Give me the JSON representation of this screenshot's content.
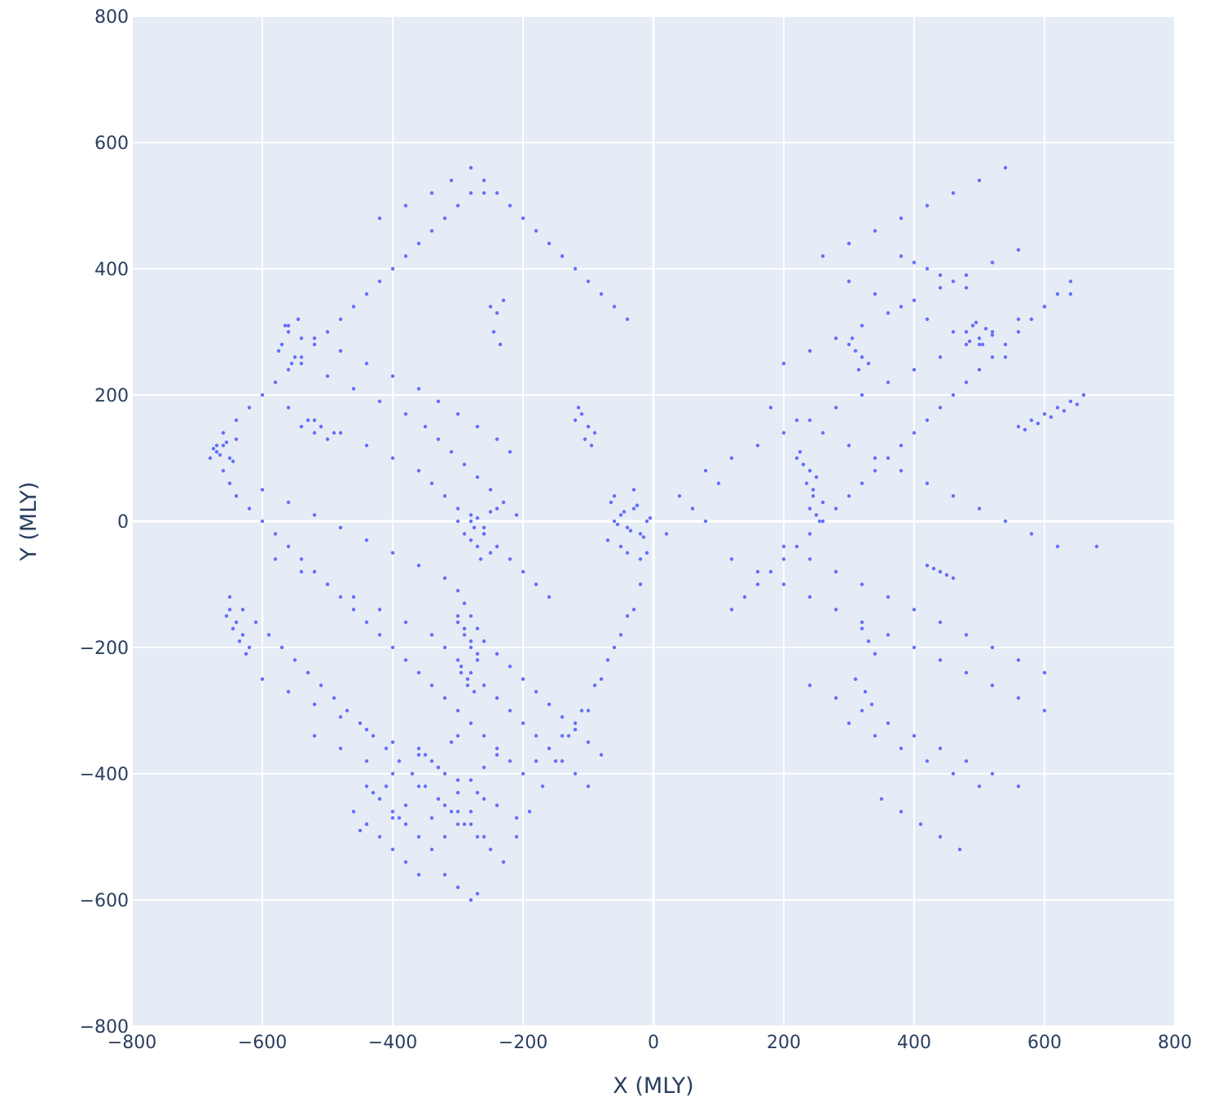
{
  "chart_data": {
    "type": "scatter",
    "title": "",
    "xlabel": "X (MLY)",
    "ylabel": "Y (MLY)",
    "xlim": [
      -800,
      800
    ],
    "ylim": [
      -800,
      800
    ],
    "grid": true,
    "colors": {
      "plot_bg": "#e5ecf6",
      "grid": "#ffffff",
      "marker": "#636efa",
      "text": "#2a3f5f"
    },
    "x_ticks": [
      {
        "value": -800,
        "label": "−800"
      },
      {
        "value": -600,
        "label": "−600"
      },
      {
        "value": -400,
        "label": "−400"
      },
      {
        "value": -200,
        "label": "−200"
      },
      {
        "value": 0,
        "label": "0"
      },
      {
        "value": 200,
        "label": "200"
      },
      {
        "value": 400,
        "label": "400"
      },
      {
        "value": 600,
        "label": "600"
      },
      {
        "value": 800,
        "label": "800"
      }
    ],
    "y_ticks": [
      {
        "value": -800,
        "label": "−800"
      },
      {
        "value": -600,
        "label": "−600"
      },
      {
        "value": -400,
        "label": "−400"
      },
      {
        "value": -200,
        "label": "−200"
      },
      {
        "value": 0,
        "label": "0"
      },
      {
        "value": 200,
        "label": "200"
      },
      {
        "value": 400,
        "label": "400"
      },
      {
        "value": 600,
        "label": "600"
      },
      {
        "value": 800,
        "label": "800"
      }
    ],
    "series": [
      {
        "x": [
          -680,
          -670,
          -660,
          -650,
          -640,
          -620,
          -600,
          -580,
          -560,
          -540,
          -520,
          -500,
          -480,
          -460,
          -440,
          -420,
          -400,
          -380,
          -360,
          -340,
          -320,
          -300,
          -280,
          -260,
          -240,
          -220,
          -200,
          -180,
          -160,
          -140,
          -120,
          -100,
          -80,
          -60,
          -40,
          -20,
          -10,
          -660,
          -640,
          -620,
          -600,
          -580,
          -560,
          -540,
          -520,
          -500,
          -480,
          -460,
          -440,
          -420,
          -400,
          -380,
          -360,
          -340,
          -320,
          -300,
          -280,
          -260,
          -240,
          -220,
          -200,
          -180,
          -160,
          -140,
          -120,
          -100,
          -80,
          -60,
          -40,
          -650,
          -630,
          -610,
          -590,
          -570,
          -550,
          -530,
          -510,
          -490,
          -470,
          -450,
          -430,
          -410,
          -390,
          -370,
          -350,
          -330,
          -310,
          -290,
          -270,
          -250,
          -230,
          -210,
          -190,
          -170,
          -150,
          -130,
          -110,
          -90,
          -70,
          -50,
          -30,
          -600,
          -560,
          -520,
          -480,
          -440,
          -400,
          -360,
          -320,
          -300,
          -290,
          -280,
          -270,
          -260,
          -240,
          -220,
          -200,
          -180,
          -160,
          -140,
          -120,
          -100,
          -80,
          -580,
          -540,
          -500,
          -460,
          -420,
          -380,
          -340,
          -320,
          -300,
          -280,
          -260,
          -240,
          -220,
          -200,
          -180,
          -160,
          -140,
          -120,
          -100,
          -560,
          -520,
          -480,
          -440,
          -400,
          -360,
          -340,
          -320,
          -300,
          -280,
          -260,
          -240,
          -220,
          -200,
          -180,
          -160,
          -540,
          -500,
          -460,
          -420,
          -380,
          -350,
          -330,
          -310,
          -290,
          -270,
          -250,
          -230,
          -210,
          -600,
          -560,
          -520,
          -480,
          -440,
          -400,
          -360,
          -330,
          -300,
          -270,
          -240,
          -210,
          -440,
          -420,
          -400,
          -380,
          -360,
          -340,
          -320,
          -300,
          -280,
          -260,
          -240,
          -440,
          -420,
          -400,
          -380,
          -360,
          -340,
          -320,
          -300,
          -280,
          -260,
          -560,
          -520,
          -480,
          -440,
          -400,
          -360,
          -330,
          -300,
          -270,
          -240,
          -220,
          -520,
          -480,
          -440,
          -400,
          -360,
          -330,
          -300,
          -280,
          -260,
          -420,
          -380,
          -340,
          -310,
          -280,
          -260,
          -320,
          -300,
          -280,
          -270,
          -650,
          -640,
          -630,
          -620,
          -655,
          -645,
          -635,
          -625,
          -670,
          -660,
          -650,
          -640,
          -675,
          -665,
          -655,
          -645,
          -570,
          -560,
          -550,
          -540,
          -575,
          -565,
          -555,
          -545,
          -540,
          -520,
          -500,
          -530,
          -510,
          -490,
          -60,
          -50,
          -40,
          -30,
          -20,
          -10,
          -5,
          -55,
          -45,
          -35,
          -25,
          -15,
          -65,
          -70,
          -60,
          -50,
          -40,
          -30,
          -20,
          -300,
          -290,
          -280,
          -270,
          -295,
          -285,
          -275,
          -300,
          -290,
          -280,
          -270,
          -295,
          -285,
          -120,
          -110,
          -100,
          -90,
          -115,
          -105,
          -95,
          -280,
          -270,
          -260,
          -250,
          -275,
          -265,
          -250,
          -240,
          -230,
          -245,
          -235,
          -360,
          -340,
          -320,
          -300,
          -350,
          -330,
          -310,
          -300,
          -280,
          -260,
          -240,
          -290,
          -270,
          -250,
          -460,
          -440,
          -420,
          -400,
          -380,
          -450,
          -430,
          -410,
          -390
        ],
        "y": [
          100,
          120,
          80,
          60,
          40,
          20,
          0,
          -20,
          -40,
          -60,
          -80,
          -100,
          -120,
          -140,
          -160,
          -180,
          -200,
          -220,
          -240,
          -260,
          -280,
          -300,
          -320,
          -340,
          -360,
          -380,
          -400,
          -380,
          -360,
          -340,
          -320,
          -300,
          -250,
          -200,
          -150,
          -100,
          -50,
          140,
          160,
          180,
          200,
          220,
          240,
          260,
          280,
          300,
          320,
          340,
          360,
          380,
          400,
          420,
          440,
          460,
          480,
          500,
          520,
          540,
          520,
          500,
          480,
          460,
          440,
          420,
          400,
          380,
          360,
          340,
          320,
          -120,
          -140,
          -160,
          -180,
          -200,
          -220,
          -240,
          -260,
          -280,
          -300,
          -320,
          -340,
          -360,
          -380,
          -400,
          -420,
          -440,
          -460,
          -480,
          -500,
          -520,
          -540,
          -500,
          -460,
          -420,
          -380,
          -340,
          -300,
          -260,
          -220,
          -180,
          -140,
          50,
          30,
          10,
          -10,
          -30,
          -50,
          -70,
          -90,
          -110,
          -130,
          -150,
          -170,
          -190,
          -210,
          -230,
          -250,
          -270,
          -290,
          -310,
          -330,
          -350,
          -370,
          -60,
          -80,
          -100,
          -120,
          -140,
          -160,
          -180,
          -200,
          -220,
          -240,
          -260,
          -280,
          -300,
          -320,
          -340,
          -360,
          -380,
          -400,
          -420,
          180,
          160,
          140,
          120,
          100,
          80,
          60,
          40,
          20,
          0,
          -20,
          -40,
          -60,
          -80,
          -100,
          -120,
          250,
          230,
          210,
          190,
          170,
          150,
          130,
          110,
          90,
          70,
          50,
          30,
          10,
          -250,
          -270,
          -290,
          -310,
          -330,
          -350,
          -370,
          -390,
          -410,
          -430,
          -450,
          -470,
          -420,
          -440,
          -460,
          -480,
          -500,
          -470,
          -450,
          -430,
          -410,
          -390,
          -370,
          -480,
          -500,
          -520,
          -540,
          -560,
          -520,
          -500,
          -480,
          -460,
          -440,
          310,
          290,
          270,
          250,
          230,
          210,
          190,
          170,
          150,
          130,
          110,
          -340,
          -360,
          -380,
          -400,
          -420,
          -440,
          -460,
          -480,
          -500,
          480,
          500,
          520,
          540,
          560,
          520,
          -560,
          -580,
          -600,
          -590,
          -140,
          -160,
          -180,
          -200,
          -150,
          -170,
          -190,
          -210,
          110,
          120,
          100,
          130,
          115,
          105,
          125,
          95,
          280,
          300,
          260,
          290,
          270,
          310,
          250,
          320,
          150,
          140,
          130,
          160,
          150,
          140,
          0,
          10,
          -10,
          20,
          -20,
          0,
          5,
          -5,
          15,
          -15,
          25,
          -25,
          30,
          -30,
          40,
          -40,
          -50,
          50,
          -60,
          -150,
          -170,
          -190,
          -210,
          -230,
          -250,
          -270,
          -160,
          -180,
          -200,
          -220,
          -240,
          -260,
          160,
          170,
          150,
          140,
          180,
          130,
          120,
          -30,
          -40,
          -20,
          -50,
          -10,
          -60,
          340,
          330,
          350,
          300,
          280,
          -360,
          -380,
          -400,
          -340,
          -370,
          -390,
          -350,
          0,
          10,
          -10,
          20,
          -20,
          5,
          15,
          -460,
          -480,
          -440,
          -470,
          -450,
          -490,
          -430,
          -420,
          -470
        ]
      },
      {
        "x": [
          20,
          40,
          60,
          80,
          100,
          120,
          140,
          160,
          180,
          200,
          220,
          240,
          260,
          280,
          300,
          320,
          340,
          360,
          380,
          400,
          420,
          440,
          460,
          480,
          500,
          520,
          540,
          560,
          580,
          600,
          620,
          640,
          660,
          680,
          80,
          120,
          160,
          200,
          240,
          280,
          320,
          360,
          400,
          440,
          480,
          520,
          560,
          600,
          640,
          120,
          160,
          200,
          240,
          280,
          320,
          360,
          400,
          440,
          480,
          520,
          560,
          600,
          200,
          240,
          280,
          320,
          360,
          400,
          440,
          480,
          520,
          560,
          260,
          300,
          340,
          380,
          420,
          460,
          500,
          540,
          300,
          340,
          380,
          420,
          460,
          500,
          350,
          380,
          410,
          440,
          470,
          180,
          220,
          260,
          300,
          340,
          380,
          420,
          460,
          500,
          540,
          580,
          620,
          200,
          240,
          280,
          320,
          360,
          400,
          440,
          480,
          520,
          560,
          600,
          240,
          280,
          320,
          360,
          400,
          440,
          480,
          520,
          560,
          300,
          340,
          380,
          420,
          460,
          500,
          540,
          380,
          400,
          420,
          440,
          460,
          480,
          560,
          580,
          600,
          620,
          640,
          660,
          570,
          590,
          610,
          630,
          650,
          480,
          490,
          500,
          510,
          520,
          485,
          495,
          505,
          220,
          230,
          240,
          250,
          225,
          235,
          245,
          300,
          310,
          320,
          330,
          305,
          315,
          320,
          330,
          340,
          310,
          325,
          335,
          240,
          250,
          260,
          245,
          255,
          420,
          440,
          460,
          430,
          450
        ],
        "y": [
          -20,
          40,
          20,
          0,
          60,
          -140,
          -120,
          -100,
          -80,
          -60,
          -40,
          -20,
          0,
          20,
          40,
          60,
          80,
          100,
          120,
          140,
          160,
          180,
          200,
          220,
          240,
          260,
          280,
          300,
          320,
          340,
          360,
          380,
          200,
          -40,
          80,
          100,
          120,
          140,
          160,
          180,
          200,
          220,
          240,
          260,
          280,
          300,
          320,
          340,
          360,
          -60,
          -80,
          -100,
          -120,
          -140,
          -160,
          -180,
          -200,
          -220,
          -240,
          -260,
          -280,
          -300,
          250,
          270,
          290,
          310,
          330,
          350,
          370,
          390,
          410,
          430,
          420,
          440,
          460,
          480,
          500,
          520,
          540,
          560,
          -320,
          -340,
          -360,
          -380,
          -400,
          -420,
          -440,
          -460,
          -480,
          -500,
          -520,
          180,
          160,
          140,
          120,
          100,
          80,
          60,
          40,
          20,
          0,
          -20,
          -40,
          -40,
          -60,
          -80,
          -100,
          -120,
          -140,
          -160,
          -180,
          -200,
          -220,
          -240,
          -260,
          -280,
          -300,
          -320,
          -340,
          -360,
          -380,
          -400,
          -420,
          380,
          360,
          340,
          320,
          300,
          280,
          260,
          420,
          410,
          400,
          390,
          380,
          370,
          150,
          160,
          170,
          180,
          190,
          200,
          145,
          155,
          165,
          175,
          185,
          300,
          310,
          290,
          305,
          295,
          285,
          315,
          280,
          100,
          90,
          80,
          70,
          110,
          60,
          50,
          280,
          270,
          260,
          250,
          290,
          240,
          -170,
          -190,
          -210,
          -250,
          -270,
          -290,
          20,
          10,
          30,
          40,
          0,
          -70,
          -80,
          -90,
          -75,
          -85
        ]
      }
    ]
  }
}
